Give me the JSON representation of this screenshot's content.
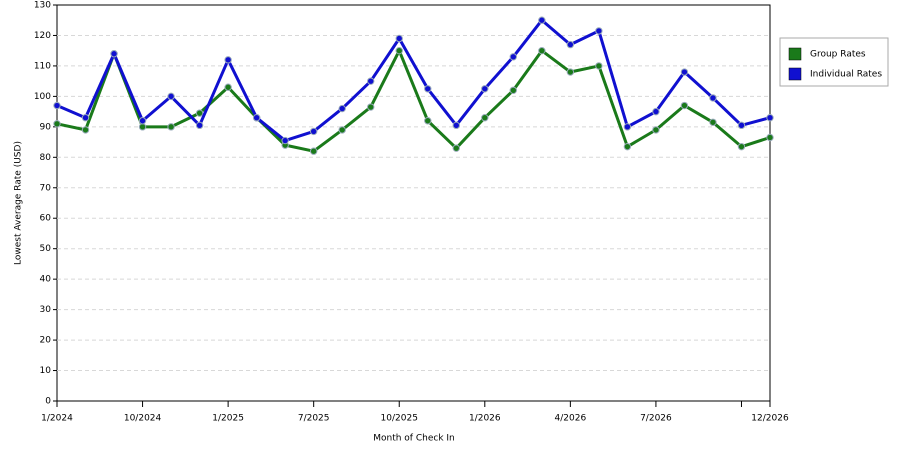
{
  "chart_data": {
    "type": "line",
    "xlabel": "Month of Check In",
    "ylabel": "Lowest Average Rate (USD)",
    "categories": [
      "1/2024",
      null,
      null,
      "10/2024",
      null,
      null,
      "1/2025",
      null,
      null,
      "7/2025",
      null,
      null,
      "10/2025",
      null,
      null,
      "1/2026",
      null,
      null,
      "4/2026",
      null,
      null,
      "7/2026",
      null,
      null,
      null,
      "12/2026"
    ],
    "series": [
      {
        "name": "Group Rates",
        "color": "#1a7a1a",
        "values": [
          91,
          89,
          114,
          90,
          90,
          94.5,
          103,
          93,
          84,
          82,
          89,
          96.5,
          115,
          92,
          83,
          93,
          102,
          115,
          108,
          110,
          83.5,
          89,
          97,
          91.5,
          83.5,
          86.5
        ]
      },
      {
        "name": "Individual Rates",
        "color": "#1010d0",
        "values": [
          97,
          93,
          114,
          92,
          100,
          90.5,
          112,
          93,
          85.5,
          88.5,
          96,
          105,
          119,
          102.5,
          90.5,
          102.5,
          113,
          125,
          117,
          121.5,
          90,
          95,
          108,
          99.5,
          90.5,
          93
        ]
      }
    ],
    "ylim": [
      0,
      130
    ],
    "yticks": [
      0,
      10,
      20,
      30,
      40,
      50,
      60,
      70,
      80,
      90,
      100,
      110,
      120,
      130
    ],
    "grid": true,
    "legend": "right"
  }
}
